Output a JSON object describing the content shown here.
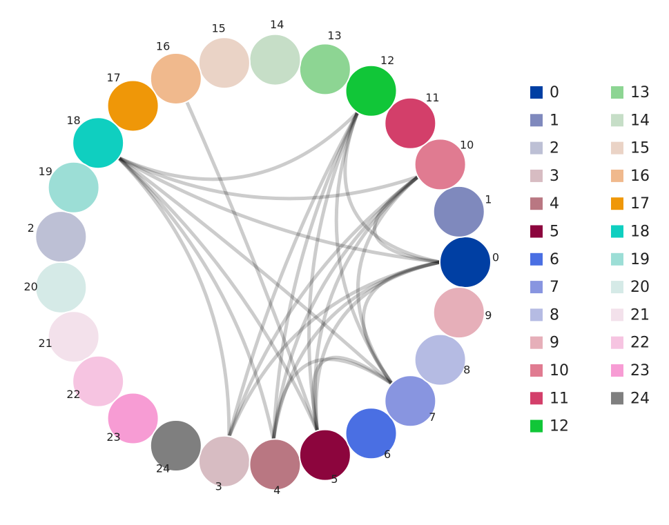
{
  "nodes": [
    {
      "label": "0",
      "color": "#003fa3"
    },
    {
      "label": "1",
      "color": "#7f89bd"
    },
    {
      "label": "2",
      "color": "#bdc0d5"
    },
    {
      "label": "3",
      "color": "#d7bcc2"
    },
    {
      "label": "4",
      "color": "#b97782"
    },
    {
      "label": "5",
      "color": "#8c053d"
    },
    {
      "label": "6",
      "color": "#4a6fe3"
    },
    {
      "label": "7",
      "color": "#8895e0"
    },
    {
      "label": "8",
      "color": "#b5bbe3"
    },
    {
      "label": "9",
      "color": "#e6afb9"
    },
    {
      "label": "10",
      "color": "#e07b91"
    },
    {
      "label": "11",
      "color": "#d33f6a"
    },
    {
      "label": "12",
      "color": "#11c638"
    },
    {
      "label": "13",
      "color": "#8dd593"
    },
    {
      "label": "14",
      "color": "#c6dec7"
    },
    {
      "label": "15",
      "color": "#ead3c6"
    },
    {
      "label": "16",
      "color": "#f0b98d"
    },
    {
      "label": "17",
      "color": "#ef9708"
    },
    {
      "label": "18",
      "color": "#0fcfc0"
    },
    {
      "label": "19",
      "color": "#9cded6"
    },
    {
      "label": "20",
      "color": "#d5eae7"
    },
    {
      "label": "21",
      "color": "#f3e1eb"
    },
    {
      "label": "22",
      "color": "#f6c4e1"
    },
    {
      "label": "23",
      "color": "#f79cd4"
    },
    {
      "label": "24",
      "color": "#7f7f7f"
    }
  ],
  "edges": [
    [
      16,
      5
    ],
    [
      18,
      0
    ],
    [
      18,
      10
    ],
    [
      18,
      12
    ],
    [
      18,
      5
    ],
    [
      18,
      4
    ],
    [
      18,
      3
    ],
    [
      18,
      7
    ],
    [
      12,
      3
    ],
    [
      12,
      4
    ],
    [
      12,
      5
    ],
    [
      12,
      7
    ],
    [
      12,
      0
    ],
    [
      10,
      3
    ],
    [
      10,
      4
    ],
    [
      10,
      5
    ],
    [
      10,
      7
    ],
    [
      10,
      0
    ],
    [
      0,
      3
    ],
    [
      0,
      4
    ],
    [
      0,
      5
    ],
    [
      0,
      7
    ],
    [
      7,
      5
    ],
    [
      7,
      4
    ]
  ]
}
